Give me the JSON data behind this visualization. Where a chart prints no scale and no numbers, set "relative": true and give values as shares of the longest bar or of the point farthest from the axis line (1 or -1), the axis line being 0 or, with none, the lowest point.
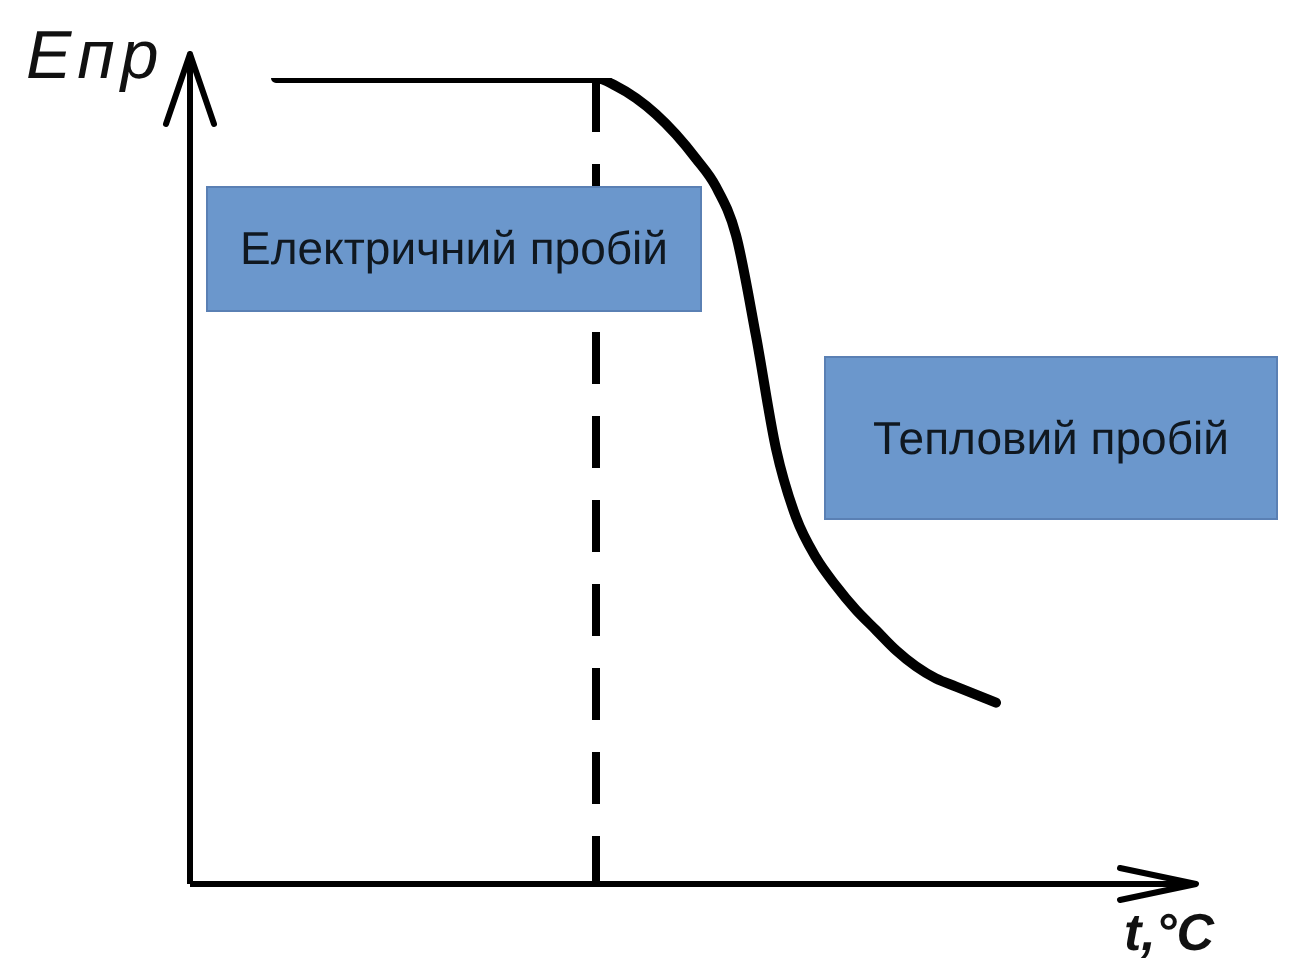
{
  "chart_data": {
    "type": "line",
    "xlabel": "t,°C",
    "ylabel": "Eпр",
    "annotations": [
      "Електричний пробій",
      "Тепловий пробій"
    ],
    "categories": [
      null,
      null,
      null,
      null,
      null,
      null,
      null,
      null,
      null,
      null,
      null,
      null,
      null,
      null,
      null,
      null,
      null,
      null,
      null,
      null,
      null,
      null,
      null,
      null,
      null,
      null,
      null,
      null,
      null,
      null,
      null,
      null,
      null,
      null,
      null,
      null,
      null,
      null,
      null,
      null,
      null,
      null,
      null,
      null,
      null,
      null,
      null,
      null,
      null,
      null
    ],
    "values": [
      null,
      null,
      null,
      null,
      1,
      1,
      1,
      1,
      1,
      1,
      1,
      1,
      1,
      1,
      1,
      1,
      1,
      1,
      1,
      1,
      1,
      0.99,
      0.975,
      0.955,
      0.93,
      0.9,
      0.865,
      0.805,
      0.68,
      0.54,
      0.455,
      0.405,
      0.37,
      0.34,
      0.315,
      0.29,
      0.27,
      0.255,
      0.245,
      0.235,
      0.225,
      null,
      null,
      null,
      null,
      null,
      null,
      null,
      null,
      null
    ],
    "color": "#000000",
    "relative": true,
    "tick_labels": false,
    "marker": "none",
    "line_style": "solid"
  }
}
